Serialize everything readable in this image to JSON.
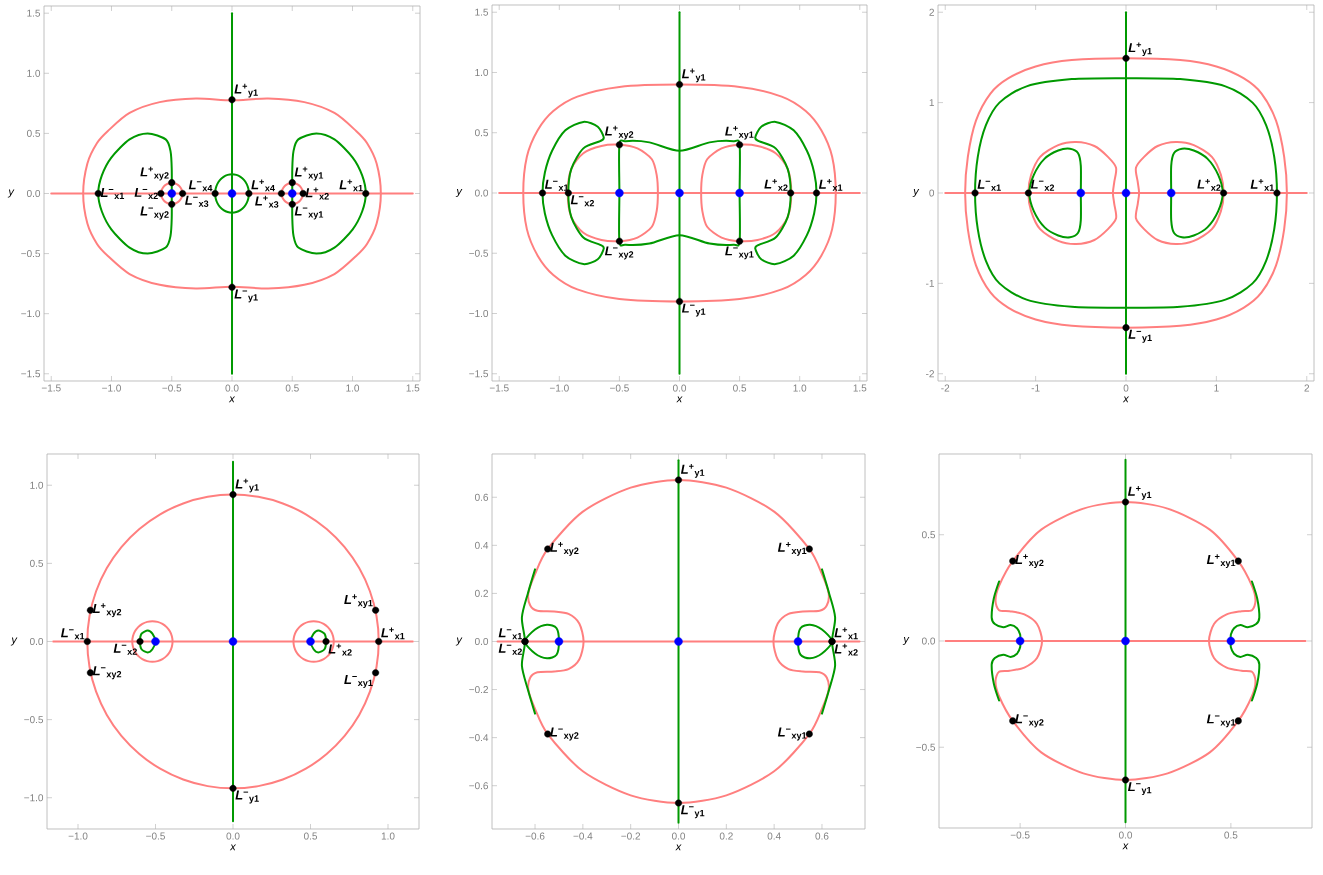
{
  "chart_data": [
    {
      "type": "line",
      "xlabel": "x",
      "ylabel": "y",
      "xlim": [
        -1.56,
        1.56
      ],
      "ylim": [
        -1.56,
        1.56
      ],
      "xticks": [
        {
          "value": -1.5,
          "label": "−1.5"
        },
        {
          "value": -1.0,
          "label": "−1.0"
        },
        {
          "value": -0.5,
          "label": "−0.5"
        },
        {
          "value": 0,
          "label": "0.0"
        },
        {
          "value": 0.5,
          "label": "0.5"
        },
        {
          "value": 1.0,
          "label": "1.0"
        },
        {
          "value": 1.5,
          "label": "1.5"
        }
      ],
      "yticks": [
        {
          "value": -1.5,
          "label": "−1.5"
        },
        {
          "value": -1.0,
          "label": "−1.0"
        },
        {
          "value": -0.5,
          "label": "−0.5"
        },
        {
          "value": 0,
          "label": "0.0"
        },
        {
          "value": 0.5,
          "label": "0.5"
        },
        {
          "value": 1.0,
          "label": "1.0"
        },
        {
          "value": 1.5,
          "label": "1.5"
        }
      ],
      "series": [
        {
          "color": "#ff7f7f",
          "x": [
            -1.5,
            1.5
          ],
          "values": [
            0,
            0
          ]
        },
        {
          "color": "#009900",
          "x": [
            0,
            0
          ],
          "values": [
            -1.5,
            1.5
          ]
        },
        {
          "type": "scatter",
          "marker": "circle",
          "color": "#000000",
          "x": [
            0,
            0,
            -1.11,
            1.11,
            -0.59,
            0.59,
            -0.41,
            0.41,
            -0.14,
            0.14,
            -0.5,
            -0.5,
            0.5,
            0.5
          ],
          "values": [
            0.78,
            -0.78,
            0,
            0,
            0,
            0,
            0,
            0,
            0,
            0,
            0.09,
            -0.09,
            0.09,
            -0.09
          ]
        },
        {
          "type": "scatter",
          "marker": "circle",
          "color": "#0000ff",
          "x": [
            -0.5,
            0,
            0.5
          ],
          "values": [
            0,
            0,
            0
          ]
        }
      ],
      "annotations": [
        {
          "text": "*L*$^{+}$$_{y1}$",
          "x": 0,
          "y": 0.78
        },
        {
          "text": "*L*$^{−}$$_{y1}$",
          "x": 0,
          "y": -0.78
        },
        {
          "text": "*L*$^{−}$$_{x1}$",
          "x": -1.11,
          "y": 0
        },
        {
          "text": "*L*$^{+}$$_{x1}$",
          "x": 1.11,
          "y": 0
        },
        {
          "text": "*L*$^{−}$$_{x2}$",
          "x": -0.59,
          "y": 0
        },
        {
          "text": "*L*$^{+}$$_{x2}$",
          "x": 0.59,
          "y": 0
        },
        {
          "text": "*L*$^{−}$$_{x3}$",
          "x": -0.41,
          "y": 0
        },
        {
          "text": "*L*$^{+}$$_{x3}$",
          "x": 0.41,
          "y": 0
        },
        {
          "text": "*L*$^{−}$$_{x4}$",
          "x": -0.14,
          "y": 0
        },
        {
          "text": "*L*$^{+}$$_{x4}$",
          "x": 0.14,
          "y": 0
        },
        {
          "text": "*L*$^{+}$$_{xy2}$",
          "x": -0.5,
          "y": 0.09
        },
        {
          "text": "*L*$^{−}$$_{xy2}$",
          "x": -0.5,
          "y": -0.09
        },
        {
          "text": "*L*$^{+}$$_{xy1}$",
          "x": 0.5,
          "y": 0.09
        },
        {
          "text": "*L*$^{−}$$_{xy1}$",
          "x": 0.5,
          "y": -0.09
        }
      ]
    },
    {
      "type": "line",
      "xlabel": "x",
      "ylabel": "y",
      "xlim": [
        -1.56,
        1.56
      ],
      "ylim": [
        -1.56,
        1.56
      ],
      "xticks": [
        {
          "value": -1.5,
          "label": "−1.5"
        },
        {
          "value": -1.0,
          "label": "−1.0"
        },
        {
          "value": -0.5,
          "label": "−0.5"
        },
        {
          "value": 0,
          "label": "0.0"
        },
        {
          "value": 0.5,
          "label": "0.5"
        },
        {
          "value": 1.0,
          "label": "1.0"
        },
        {
          "value": 1.5,
          "label": "1.5"
        }
      ],
      "yticks": [
        {
          "value": -1.5,
          "label": "−1.5"
        },
        {
          "value": -1.0,
          "label": "−1.0"
        },
        {
          "value": -0.5,
          "label": "−0.5"
        },
        {
          "value": 0,
          "label": "0.0"
        },
        {
          "value": 0.5,
          "label": "0.5"
        },
        {
          "value": 1.0,
          "label": "1.0"
        },
        {
          "value": 1.5,
          "label": "1.5"
        }
      ],
      "series": [
        {
          "color": "#ff7f7f",
          "x": [
            -1.5,
            1.5
          ],
          "values": [
            0,
            0
          ]
        },
        {
          "color": "#009900",
          "x": [
            0,
            0
          ],
          "values": [
            -1.5,
            1.5
          ]
        },
        {
          "type": "scatter",
          "marker": "circle",
          "color": "#000000",
          "x": [
            0,
            0,
            -1.14,
            -0.925,
            0.925,
            1.14,
            -0.5,
            -0.5,
            0.5,
            0.5
          ],
          "values": [
            0.9,
            -0.9,
            0,
            0,
            0,
            0,
            0.4,
            -0.4,
            0.4,
            -0.4
          ]
        },
        {
          "type": "scatter",
          "marker": "circle",
          "color": "#0000ff",
          "x": [
            -0.5,
            0,
            0.5
          ],
          "values": [
            0,
            0,
            0
          ]
        }
      ],
      "annotations": [
        {
          "text": "*L*$^{+}$$_{y1}$",
          "x": 0,
          "y": 0.9
        },
        {
          "text": "*L*$^{−}$$_{y1}$",
          "x": 0,
          "y": -0.9
        },
        {
          "text": "*L*$^{−}$$_{x1}$",
          "x": -1.14,
          "y": 0
        },
        {
          "text": "*L*$^{−}$$_{x2}$",
          "x": -0.925,
          "y": 0
        },
        {
          "text": "*L*$^{+}$$_{x2}$",
          "x": 0.925,
          "y": 0
        },
        {
          "text": "*L*$^{+}$$_{x1}$",
          "x": 1.14,
          "y": 0
        },
        {
          "text": "*L*$^{+}$$_{xy2}$",
          "x": -0.5,
          "y": 0.4
        },
        {
          "text": "*L*$^{−}$$_{xy2}$",
          "x": -0.5,
          "y": -0.4
        },
        {
          "text": "*L*$^{+}$$_{xy1}$",
          "x": 0.5,
          "y": 0.4
        },
        {
          "text": "*L*$^{−}$$_{xy1}$",
          "x": 0.5,
          "y": -0.4
        }
      ]
    },
    {
      "type": "line",
      "xlabel": "x",
      "ylabel": "y",
      "xlim": [
        -2.08,
        2.08
      ],
      "ylim": [
        -2.08,
        2.08
      ],
      "xticks": [
        -2,
        -1,
        0,
        1,
        2
      ],
      "yticks": [
        -2,
        -1,
        0,
        1,
        2
      ],
      "series": [
        {
          "color": "#ff7f7f",
          "x": [
            -2,
            2
          ],
          "values": [
            0,
            0
          ]
        },
        {
          "color": "#009900",
          "x": [
            0,
            0
          ],
          "values": [
            -2,
            2
          ]
        },
        {
          "type": "scatter",
          "marker": "circle",
          "color": "#000000",
          "x": [
            0,
            0,
            -1.67,
            -1.08,
            1.08,
            1.67
          ],
          "values": [
            1.49,
            -1.49,
            0,
            0,
            0,
            0
          ]
        },
        {
          "type": "scatter",
          "marker": "circle",
          "color": "#0000ff",
          "x": [
            -0.5,
            0,
            0.5
          ],
          "values": [
            0,
            0,
            0
          ]
        }
      ],
      "annotations": [
        {
          "text": "*L*$^{+}$$_{y1}$",
          "x": 0,
          "y": 1.49
        },
        {
          "text": "*L*$^{−}$$_{y1}$",
          "x": 0,
          "y": -1.49
        },
        {
          "text": "*L*$^{−}$$_{x1}$",
          "x": -1.67,
          "y": 0
        },
        {
          "text": "*L*$^{−}$$_{x2}$",
          "x": -1.08,
          "y": 0
        },
        {
          "text": "*L*$^{+}$$_{x2}$",
          "x": 1.08,
          "y": 0
        },
        {
          "text": "*L*$^{+}$$_{x1}$",
          "x": 1.67,
          "y": 0
        }
      ]
    },
    {
      "type": "line",
      "xlabel": "x",
      "ylabel": "y",
      "xlim": [
        -1.2,
        1.2
      ],
      "ylim": [
        -1.2,
        1.2
      ],
      "xticks": [
        {
          "value": -1.0,
          "label": "−1.0"
        },
        {
          "value": -0.5,
          "label": "−0.5"
        },
        {
          "value": 0,
          "label": "0.0"
        },
        {
          "value": 0.5,
          "label": "0.5"
        },
        {
          "value": 1.0,
          "label": "1.0"
        }
      ],
      "yticks": [
        {
          "value": -1.0,
          "label": "−1.0"
        },
        {
          "value": -0.5,
          "label": "−0.5"
        },
        {
          "value": 0,
          "label": "0.0"
        },
        {
          "value": 0.5,
          "label": "0.5"
        },
        {
          "value": 1.0,
          "label": "1.0"
        }
      ],
      "series": [
        {
          "color": "#ff7f7f",
          "x": [
            -1.16,
            1.16
          ],
          "values": [
            0,
            0
          ]
        },
        {
          "color": "#009900",
          "x": [
            0,
            0
          ],
          "values": [
            -1.15,
            1.15
          ]
        },
        {
          "type": "scatter",
          "marker": "circle",
          "color": "#000000",
          "x": [
            0,
            0,
            -0.94,
            0.94,
            -0.6,
            0.6,
            -0.92,
            -0.92,
            0.92,
            0.92
          ],
          "values": [
            0.94,
            -0.94,
            0,
            0,
            0,
            0,
            0.2,
            -0.2,
            0.2,
            -0.2
          ]
        },
        {
          "type": "scatter",
          "marker": "circle",
          "color": "#0000ff",
          "x": [
            -0.5,
            0,
            0.5
          ],
          "values": [
            0,
            0,
            0
          ]
        }
      ],
      "annotations": [
        {
          "text": "*L*$^{+}$$_{y1}$",
          "x": 0,
          "y": 0.94
        },
        {
          "text": "*L*$^{−}$$_{y1}$",
          "x": 0,
          "y": -0.94
        },
        {
          "text": "*L*$^{−}$$_{x1}$",
          "x": -0.94,
          "y": 0
        },
        {
          "text": "*L*$^{+}$$_{x1}$",
          "x": 0.94,
          "y": 0
        },
        {
          "text": "*L*$^{−}$$_{x2}$",
          "x": -0.6,
          "y": 0
        },
        {
          "text": "*L*$^{+}$$_{x2}$",
          "x": 0.6,
          "y": 0
        },
        {
          "text": "*L*$^{+}$$_{xy2}$",
          "x": -0.92,
          "y": 0.2
        },
        {
          "text": "*L*$^{−}$$_{xy2}$",
          "x": -0.92,
          "y": -0.2
        },
        {
          "text": "*L*$^{+}$$_{xy1}$",
          "x": 0.92,
          "y": 0.2
        },
        {
          "text": "*L*$^{−}$$_{xy1}$",
          "x": 0.92,
          "y": -0.2
        }
      ]
    },
    {
      "type": "line",
      "xlabel": "x",
      "ylabel": "y",
      "xlim": [
        -0.78,
        0.78
      ],
      "ylim": [
        -0.78,
        0.78
      ],
      "xticks": [
        {
          "value": -0.6,
          "label": "−0.6"
        },
        {
          "value": -0.4,
          "label": "−0.4"
        },
        {
          "value": -0.2,
          "label": "−0.2"
        },
        {
          "value": 0,
          "label": "0.0"
        },
        {
          "value": 0.2,
          "label": "0.2"
        },
        {
          "value": 0.4,
          "label": "0.4"
        },
        {
          "value": 0.6,
          "label": "0.6"
        }
      ],
      "yticks": [
        {
          "value": -0.6,
          "label": "−0.6"
        },
        {
          "value": -0.4,
          "label": "−0.4"
        },
        {
          "value": -0.2,
          "label": "−0.2"
        },
        {
          "value": 0,
          "label": "0.0"
        },
        {
          "value": 0.2,
          "label": "0.2"
        },
        {
          "value": 0.4,
          "label": "0.4"
        },
        {
          "value": 0.6,
          "label": "0.6"
        }
      ],
      "series": [
        {
          "color": "#ff7f7f",
          "x": [
            -0.757,
            0.757
          ],
          "values": [
            0,
            0
          ]
        },
        {
          "color": "#009900",
          "x": [
            0,
            0
          ],
          "values": [
            -0.754,
            0.754
          ]
        },
        {
          "type": "scatter",
          "marker": "circle",
          "color": "#000000",
          "x": [
            0,
            0,
            0.547,
            0.547,
            -0.547,
            -0.547,
            0.642,
            0.642,
            -0.642,
            -0.642
          ],
          "values": [
            0.672,
            -0.672,
            0.385,
            -0.385,
            0.385,
            -0.385,
            0,
            0,
            0,
            0
          ]
        },
        {
          "type": "scatter",
          "marker": "circle",
          "color": "#0000ff",
          "x": [
            -0.5,
            0,
            0.5
          ],
          "values": [
            0,
            0,
            0
          ]
        }
      ],
      "annotations": [
        {
          "text": "*L*$^{+}$$_{y1}$",
          "x": 0,
          "y": 0.672
        },
        {
          "text": "*L*$^{−}$$_{y1}$",
          "x": 0,
          "y": -0.672
        },
        {
          "text": "*L*$^{+}$$_{xy1}$",
          "x": 0.547,
          "y": 0.385
        },
        {
          "text": "*L*$^{−}$$_{xy1}$",
          "x": 0.547,
          "y": -0.385
        },
        {
          "text": "*L*$^{+}$$_{xy2}$",
          "x": -0.547,
          "y": 0.385
        },
        {
          "text": "*L*$^{−}$$_{xy2}$",
          "x": -0.547,
          "y": -0.385
        },
        {
          "text": "*L*$^{+}$$_{x1}$",
          "x": 0.642,
          "y": 0
        },
        {
          "text": "*L*$^{+}$$_{x2}$",
          "x": 0.642,
          "y": 0
        },
        {
          "text": "*L*$^{−}$$_{x1}$",
          "x": -0.642,
          "y": 0
        },
        {
          "text": "*L*$^{−}$$_{x2}$",
          "x": -0.642,
          "y": 0
        }
      ]
    },
    {
      "type": "line",
      "xlabel": "x",
      "ylabel": "y",
      "xlim": [
        -0.885,
        0.885
      ],
      "ylim": [
        -0.88,
        0.88
      ],
      "xticks": [
        {
          "value": -0.5,
          "label": "−0.5"
        },
        {
          "value": 0,
          "label": "0.0"
        },
        {
          "value": 0.5,
          "label": "0.5"
        }
      ],
      "yticks": [
        {
          "value": -0.5,
          "label": "−0.5"
        },
        {
          "value": 0,
          "label": "0.0"
        },
        {
          "value": 0.5,
          "label": "0.5"
        }
      ],
      "series": [
        {
          "color": "#ff7f7f",
          "x": [
            -0.854,
            0.854
          ],
          "values": [
            0,
            0
          ]
        },
        {
          "color": "#009900",
          "x": [
            0,
            0
          ],
          "values": [
            -0.853,
            0.853
          ]
        },
        {
          "type": "scatter",
          "marker": "circle",
          "color": "#000000",
          "x": [
            0,
            0,
            0.535,
            0.535,
            -0.535,
            -0.535
          ],
          "values": [
            0.654,
            -0.654,
            0.376,
            -0.376,
            0.376,
            -0.376
          ]
        },
        {
          "type": "scatter",
          "marker": "circle",
          "color": "#0000ff",
          "x": [
            -0.5,
            0,
            0.5
          ],
          "values": [
            0,
            0,
            0
          ]
        }
      ],
      "annotations": [
        {
          "text": "*L*$^{+}$$_{y1}$",
          "x": 0,
          "y": 0.654
        },
        {
          "text": "*L*$^{−}$$_{y1}$",
          "x": 0,
          "y": -0.654
        },
        {
          "text": "*L*$^{+}$$_{xy1}$",
          "x": 0.535,
          "y": 0.376
        },
        {
          "text": "*L*$^{−}$$_{xy1}$",
          "x": 0.535,
          "y": -0.376
        },
        {
          "text": "*L*$^{+}$$_{xy2}$",
          "x": -0.535,
          "y": 0.376
        },
        {
          "text": "*L*$^{−}$$_{xy2}$",
          "x": -0.535,
          "y": -0.376
        }
      ]
    }
  ]
}
